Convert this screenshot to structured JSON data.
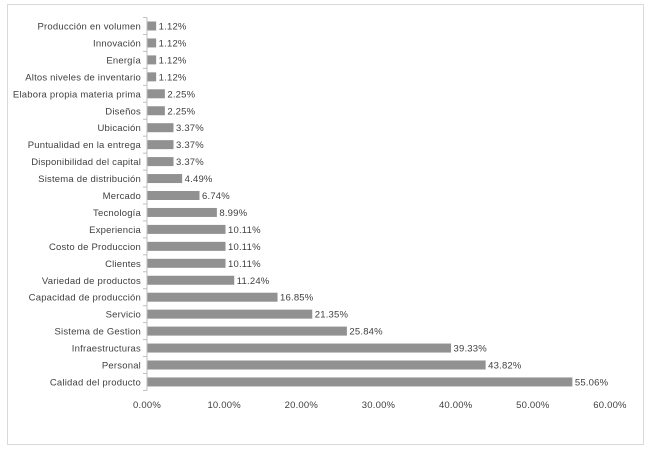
{
  "chart_data": {
    "type": "bar",
    "orientation": "horizontal",
    "title": "",
    "xlabel": "",
    "ylabel": "",
    "categories": [
      "Producción en volumen",
      "Innovación",
      "Energía",
      "Altos niveles de inventario",
      "Elabora propia materia prima",
      "Diseños",
      "Ubicación",
      "Puntualidad en la entrega",
      "Disponibilidad del capital",
      "Sistema de distribución",
      "Mercado",
      "Tecnología",
      "Experiencia",
      "Costo de Produccion",
      "Clientes",
      "Variedad de productos",
      "Capacidad de producción",
      "Servicio",
      "Sistema de Gestion",
      "Infraestructuras",
      "Personal",
      "Calidad del producto"
    ],
    "values": [
      1.12,
      1.12,
      1.12,
      1.12,
      2.25,
      2.25,
      3.37,
      3.37,
      3.37,
      4.49,
      6.74,
      8.99,
      10.11,
      10.11,
      10.11,
      11.24,
      16.85,
      21.35,
      25.84,
      39.33,
      43.82,
      55.06
    ],
    "value_labels": [
      "1.12%",
      "1.12%",
      "1.12%",
      "1.12%",
      "2.25%",
      "2.25%",
      "3.37%",
      "3.37%",
      "3.37%",
      "4.49%",
      "6.74%",
      "8.99%",
      "10.11%",
      "10.11%",
      "10.11%",
      "11.24%",
      "16.85%",
      "21.35%",
      "25.84%",
      "39.33%",
      "43.82%",
      "55.06%"
    ],
    "xlim": [
      0,
      60
    ],
    "x_ticks": [
      "0.00%",
      "10.00%",
      "20.00%",
      "30.00%",
      "40.00%",
      "50.00%",
      "60.00%"
    ],
    "grid": false,
    "legend": "none",
    "bar_color": "#919191",
    "text_color": "#404040",
    "axis_color": "#bfbfbf"
  }
}
